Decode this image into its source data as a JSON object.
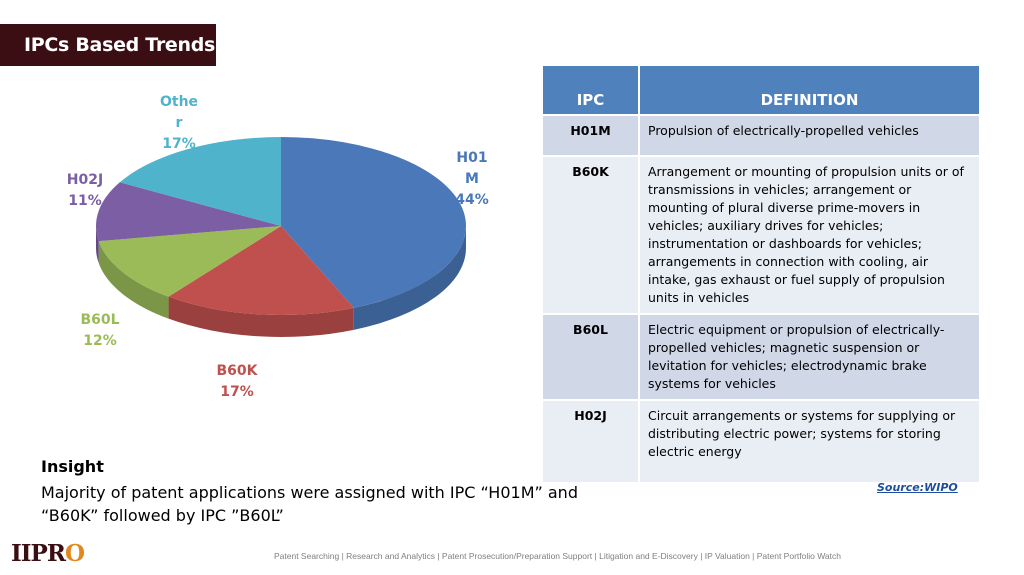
{
  "header": {
    "title": "IPCs Based Trends"
  },
  "chart_data": {
    "type": "pie",
    "style": "3d",
    "slices": [
      {
        "name": "H01M",
        "name_lines": [
          "H01",
          "M"
        ],
        "value": 44,
        "label": "44%",
        "color": "#4a78b8"
      },
      {
        "name": "B60K",
        "name_lines": [
          "B60K"
        ],
        "value": 17,
        "label": "17%",
        "color": "#c0504d"
      },
      {
        "name": "B60L",
        "name_lines": [
          "B60L"
        ],
        "value": 12,
        "label": "12%",
        "color": "#9bbb59"
      },
      {
        "name": "H02J",
        "name_lines": [
          "H02J"
        ],
        "value": 11,
        "label": "11%",
        "color": "#7b5ea3"
      },
      {
        "name": "Other",
        "name_lines": [
          "Othe",
          "r"
        ],
        "value": 17,
        "label": "17%",
        "color": "#4fb3cc"
      }
    ]
  },
  "table": {
    "headers": [
      "IPC",
      "DEFINITION"
    ],
    "rows": [
      {
        "code": "H01M",
        "definition": "Propulsion of electrically-propelled vehicles"
      },
      {
        "code": "B60K",
        "definition": "Arrangement or mounting of propulsion units or of transmissions in vehicles; arrangement or mounting of plural diverse prime-movers in vehicles; auxiliary drives for vehicles; instrumentation or dashboards for vehicles; arrangements in connection with cooling, air intake, gas exhaust or fuel supply of propulsion units in vehicles"
      },
      {
        "code": "B60L",
        "definition": "Electric equipment or propulsion of electrically-propelled vehicles; magnetic suspension or levitation for vehicles; electrodynamic brake systems for vehicles"
      },
      {
        "code": "H02J",
        "definition": "Circuit arrangements or systems for supplying or distributing electric power; systems for storing electric energy"
      }
    ]
  },
  "insight": {
    "heading": "Insight",
    "text": "Majority of patent applications were assigned with IPC “H01M” and “B60K” followed by IPC ”B60L”"
  },
  "source": "Source:WIPO",
  "logo": {
    "text": "IIPR",
    "accent": "O"
  },
  "footer": "Patent Searching | Research and Analytics | Patent Prosecution/Preparation Support | Litigation and E-Discovery | IP Valuation | Patent Portfolio Watch"
}
